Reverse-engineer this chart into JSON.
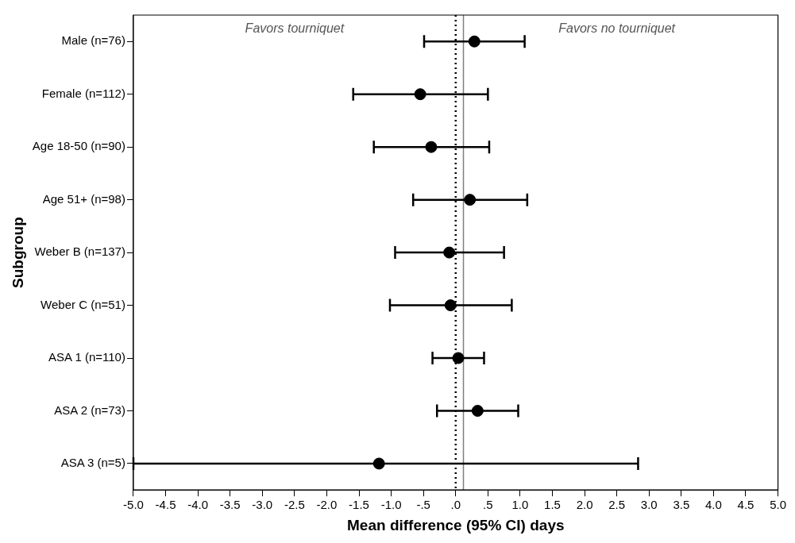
{
  "chart_data": {
    "type": "scatter",
    "orientation": "horizontal",
    "xlabel": "Mean difference (95% CI) days",
    "ylabel": "Subgroup",
    "categories": [
      "Male (n=76)",
      "Female (n=112)",
      "Age 18-50 (n=90)",
      "Age 51+ (n=98)",
      "Weber B (n=137)",
      "Weber C (n=51)",
      "ASA 1 (n=110)",
      "ASA 2 (n=73)",
      "ASA 3 (n=5)"
    ],
    "values": [
      0.29,
      -0.55,
      -0.38,
      0.22,
      -0.1,
      -0.08,
      0.04,
      0.34,
      -1.19
    ],
    "errors": [
      [
        -0.49,
        1.07
      ],
      [
        -1.59,
        0.5
      ],
      [
        -1.27,
        0.52
      ],
      [
        -0.66,
        1.11
      ],
      [
        -0.94,
        0.75
      ],
      [
        -1.02,
        0.87
      ],
      [
        -0.36,
        0.44
      ],
      [
        -0.29,
        0.97
      ],
      [
        -5.0,
        2.83
      ]
    ],
    "color": "#000000",
    "marker": "circle",
    "legend": false,
    "grid": false,
    "xlim": [
      -5,
      5
    ],
    "xticks": [
      {
        "value": -5,
        "label": "-5.0"
      },
      {
        "value": -4.5,
        "label": "-4.5"
      },
      {
        "value": -4,
        "label": "-4.0"
      },
      {
        "value": -3.5,
        "label": "-3.5"
      },
      {
        "value": -3,
        "label": "-3.0"
      },
      {
        "value": -2.5,
        "label": "-2.5"
      },
      {
        "value": -2,
        "label": "-2.0"
      },
      {
        "value": -1.5,
        "label": "-1.5"
      },
      {
        "value": -1,
        "label": "-1.0"
      },
      {
        "value": -0.5,
        "label": "-.5"
      },
      {
        "value": 0,
        "label": ".0"
      },
      {
        "value": 0.5,
        "label": ".5"
      },
      {
        "value": 1,
        "label": "1.0"
      },
      {
        "value": 1.5,
        "label": "1.5"
      },
      {
        "value": 2,
        "label": "2.0"
      },
      {
        "value": 2.5,
        "label": "2.5"
      },
      {
        "value": 3,
        "label": "3.0"
      },
      {
        "value": 3.5,
        "label": "3.5"
      },
      {
        "value": 4,
        "label": "4.0"
      },
      {
        "value": 4.5,
        "label": "4.5"
      },
      {
        "value": 5,
        "label": "5.0"
      }
    ],
    "ref_lines": [
      {
        "axis": "x",
        "value": 0,
        "line_style": "dotted",
        "color": "#000000"
      },
      {
        "axis": "x",
        "value": 0.12,
        "line_style": "solid",
        "color": "#808080"
      }
    ],
    "annotations": [
      "Favors tourniquet",
      "Favors no tourniquet"
    ]
  }
}
